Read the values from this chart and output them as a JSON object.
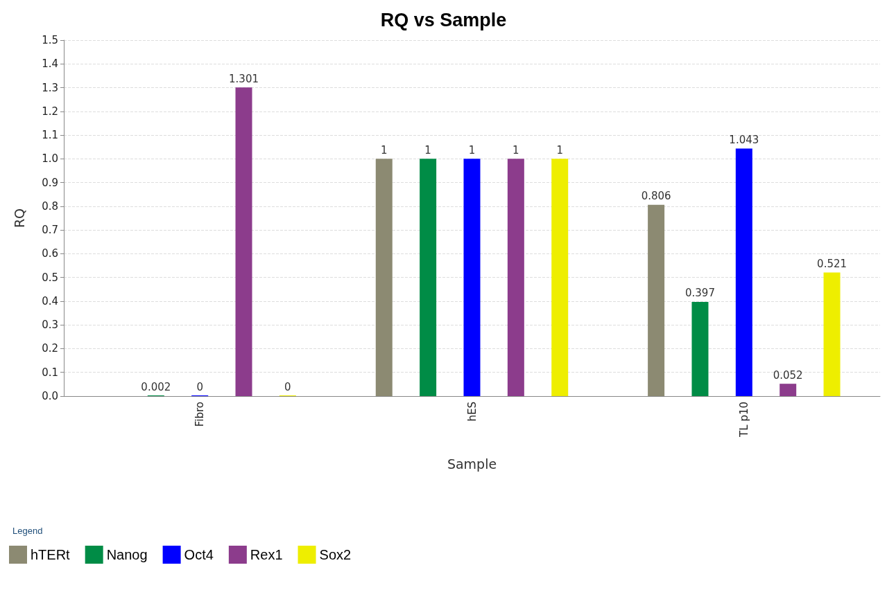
{
  "chart_data": {
    "type": "bar",
    "title": "RQ vs Sample",
    "xlabel": "Sample",
    "ylabel": "RQ",
    "legend_title": "Legend",
    "categories": [
      "Fibro",
      "hES",
      "TL p10"
    ],
    "series": [
      {
        "name": "hTERt",
        "color": "#8c8a72",
        "values": [
          null,
          1,
          0.806
        ]
      },
      {
        "name": "Nanog",
        "color": "#008c46",
        "values": [
          0.002,
          1,
          0.397
        ]
      },
      {
        "name": "Oct4",
        "color": "#0000ff",
        "values": [
          0,
          1,
          1.043
        ]
      },
      {
        "name": "Rex1",
        "color": "#8c3c8c",
        "values": [
          1.301,
          1,
          0.052
        ]
      },
      {
        "name": "Sox2",
        "color": "#eeee00",
        "values": [
          0,
          1,
          0.521
        ]
      }
    ],
    "ylim": [
      0,
      1.5
    ],
    "yticks": [
      {
        "value": 0,
        "label": "0.0"
      },
      0.1,
      0.2,
      0.3,
      0.4,
      0.5,
      0.6,
      0.7,
      0.8,
      0.9,
      {
        "value": 1,
        "label": "1.0"
      },
      1.1,
      1.2,
      1.3,
      1.4,
      1.5
    ],
    "grid": "y",
    "legend": "bottom",
    "data_labels": true
  }
}
